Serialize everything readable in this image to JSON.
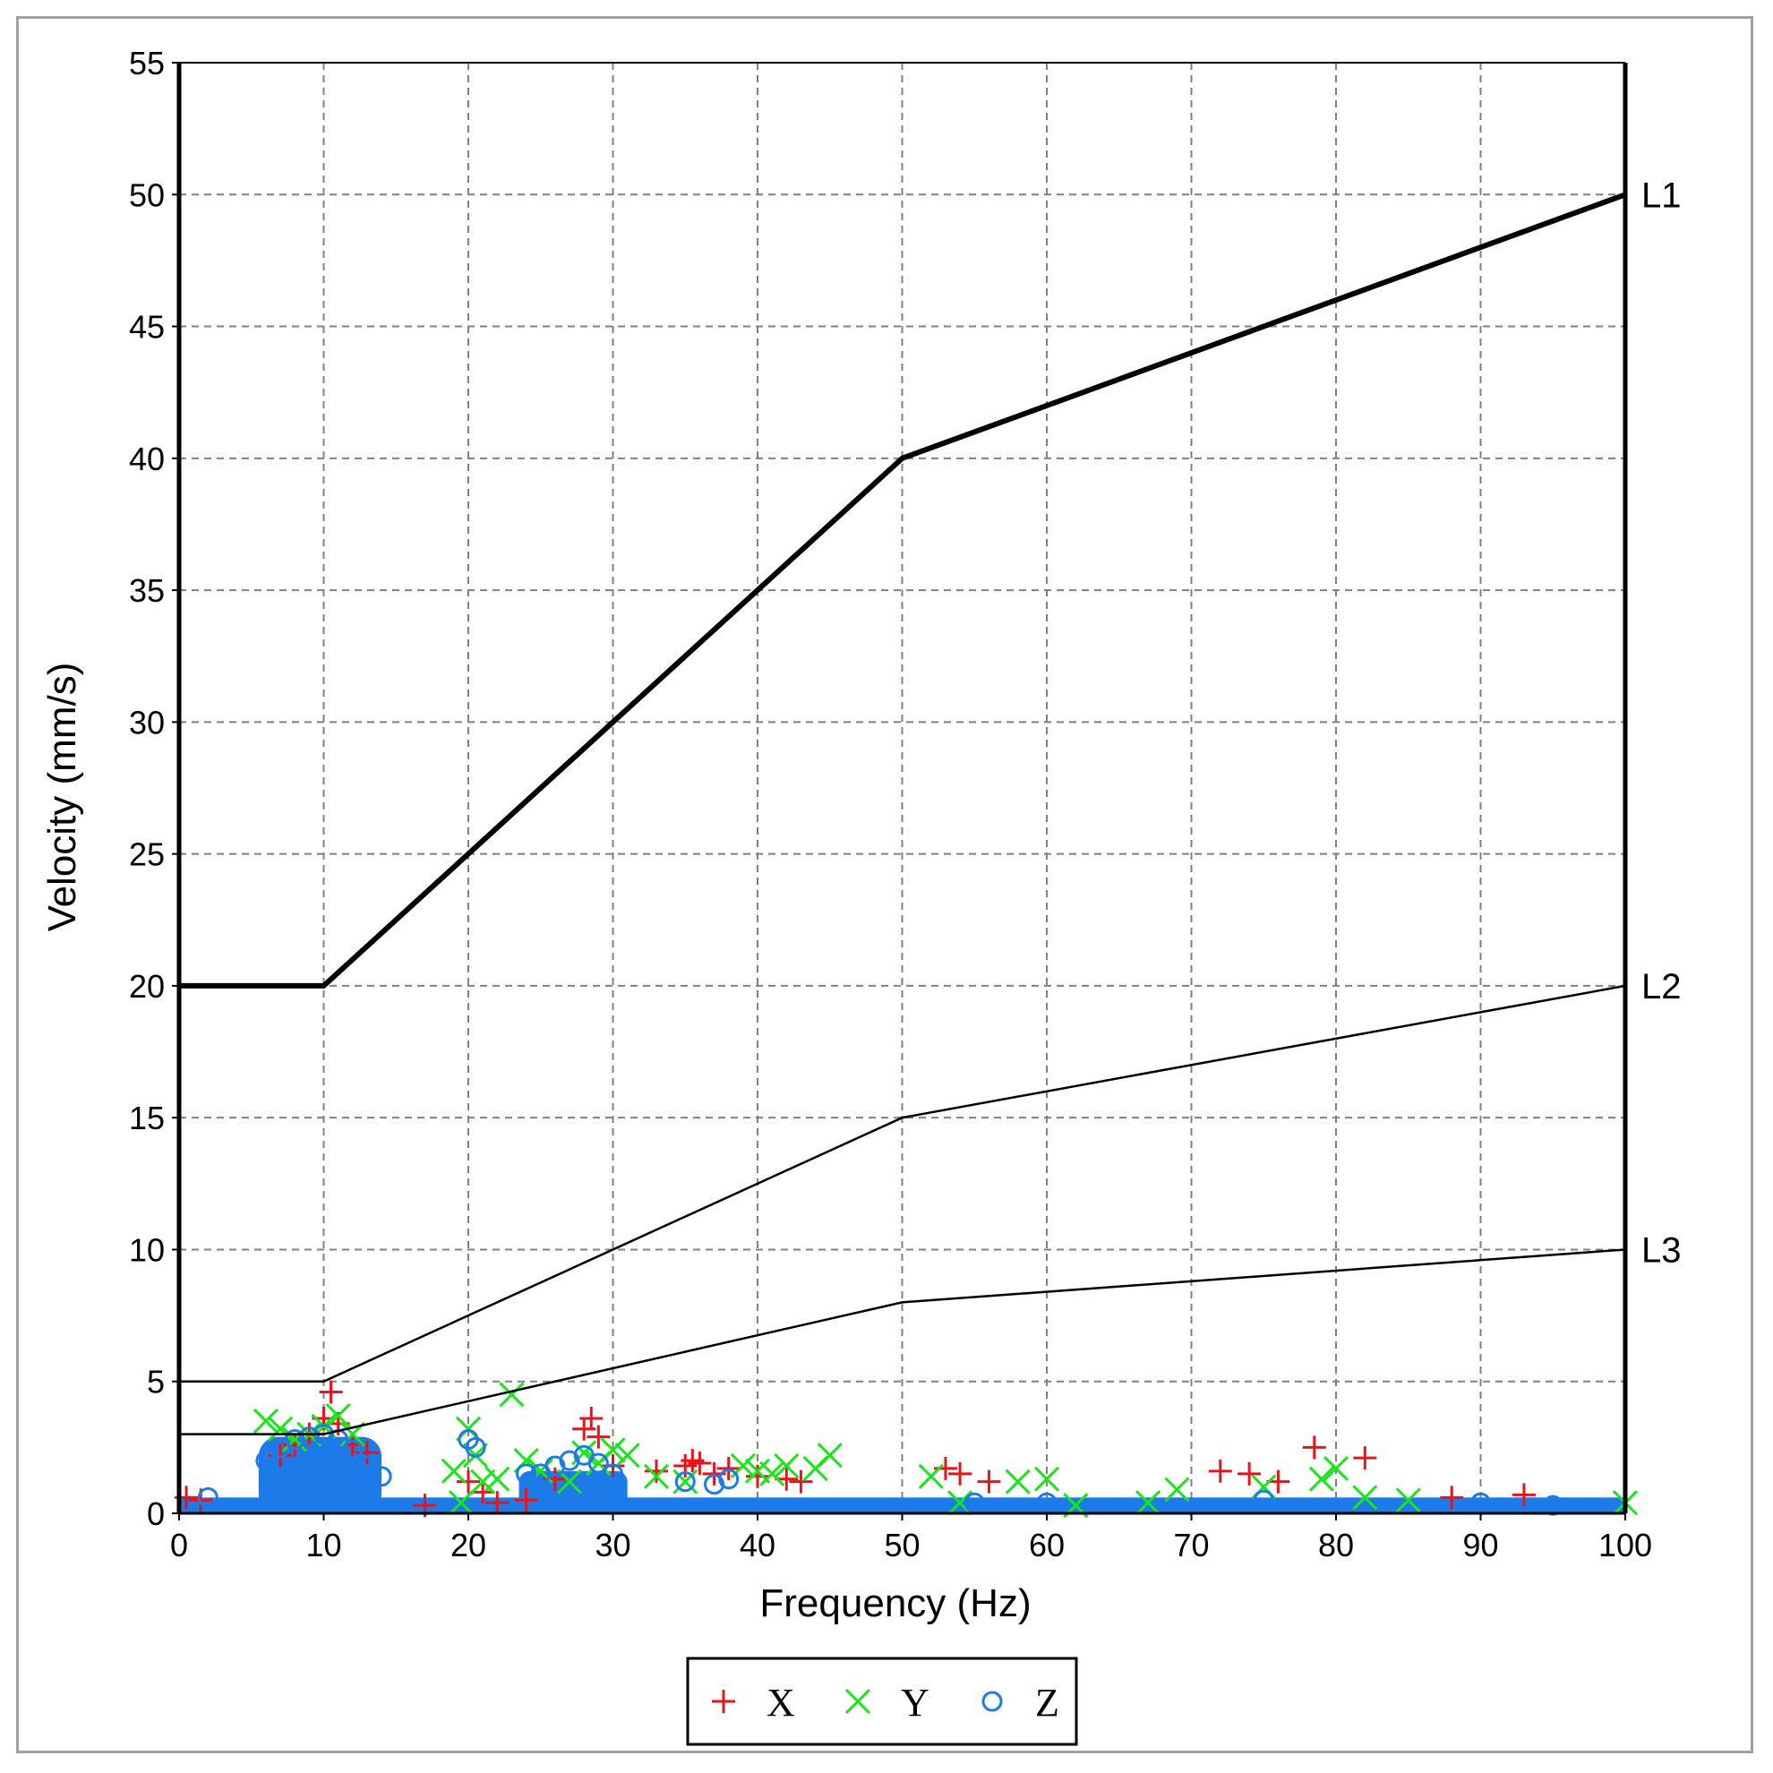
{
  "chart_data": {
    "type": "scatter",
    "xlabel": "Frequency (Hz)",
    "ylabel": "Velocity (mm/s)",
    "xlim": [
      0,
      100
    ],
    "ylim": [
      0,
      55
    ],
    "xticks": [
      "0",
      "10",
      "20",
      "30",
      "40",
      "50",
      "60",
      "70",
      "80",
      "90",
      "100"
    ],
    "yticks": [
      "0",
      "5",
      "10",
      "15",
      "20",
      "25",
      "30",
      "35",
      "40",
      "45",
      "50",
      "55"
    ],
    "grid": true,
    "legend_position": "bottom-center",
    "limit_lines": [
      {
        "name": "L1",
        "style": "thick",
        "points": [
          [
            0,
            20
          ],
          [
            10,
            20
          ],
          [
            50,
            40
          ],
          [
            100,
            50
          ]
        ]
      },
      {
        "name": "L2",
        "style": "thin",
        "points": [
          [
            0,
            5
          ],
          [
            10,
            5
          ],
          [
            50,
            15
          ],
          [
            100,
            20
          ]
        ]
      },
      {
        "name": "L3",
        "style": "thin",
        "points": [
          [
            0,
            3
          ],
          [
            10,
            3
          ],
          [
            50,
            8
          ],
          [
            100,
            10
          ]
        ]
      }
    ],
    "series": [
      {
        "name": "X",
        "marker": "+",
        "color": "#e8141c",
        "points": [
          [
            0.5,
            0.6
          ],
          [
            1.5,
            0.5
          ],
          [
            7,
            2.2
          ],
          [
            8,
            2.6
          ],
          [
            9,
            3.0
          ],
          [
            10,
            3.6
          ],
          [
            10.5,
            4.6
          ],
          [
            11,
            3.4
          ],
          [
            12,
            2.6
          ],
          [
            13,
            2.3
          ],
          [
            17,
            0.3
          ],
          [
            20,
            1.2
          ],
          [
            21,
            0.8
          ],
          [
            22,
            0.4
          ],
          [
            24,
            0.5
          ],
          [
            26,
            1.3
          ],
          [
            28,
            3.2
          ],
          [
            28.5,
            3.6
          ],
          [
            29,
            2.9
          ],
          [
            30,
            1.8
          ],
          [
            33,
            1.6
          ],
          [
            35,
            1.8
          ],
          [
            35.5,
            2.0
          ],
          [
            36,
            1.9
          ],
          [
            37,
            1.5
          ],
          [
            38,
            1.7
          ],
          [
            40,
            1.4
          ],
          [
            42,
            1.3
          ],
          [
            43,
            1.2
          ],
          [
            53,
            1.7
          ],
          [
            54,
            1.5
          ],
          [
            56,
            1.2
          ],
          [
            72,
            1.6
          ],
          [
            74,
            1.5
          ],
          [
            76,
            1.2
          ],
          [
            78.5,
            2.5
          ],
          [
            82,
            2.1
          ],
          [
            88,
            0.6
          ],
          [
            93,
            0.7
          ]
        ]
      },
      {
        "name": "Y",
        "marker": "x",
        "color": "#19e619",
        "points": [
          [
            6,
            3.5
          ],
          [
            7,
            3.2
          ],
          [
            8,
            2.8
          ],
          [
            9,
            3.0
          ],
          [
            10,
            3.3
          ],
          [
            11,
            3.7
          ],
          [
            12,
            3.0
          ],
          [
            19,
            1.6
          ],
          [
            20,
            3.2
          ],
          [
            20.5,
            2.2
          ],
          [
            21,
            1.2
          ],
          [
            19.5,
            0.4
          ],
          [
            22,
            1.3
          ],
          [
            23,
            4.5
          ],
          [
            24,
            2.0
          ],
          [
            25,
            1.6
          ],
          [
            27,
            1.2
          ],
          [
            28,
            2.3
          ],
          [
            29,
            1.9
          ],
          [
            30,
            2.4
          ],
          [
            31,
            2.2
          ],
          [
            33,
            1.4
          ],
          [
            35,
            1.2
          ],
          [
            39,
            1.8
          ],
          [
            40,
            1.6
          ],
          [
            41,
            1.5
          ],
          [
            42,
            1.8
          ],
          [
            44,
            1.7
          ],
          [
            45,
            2.2
          ],
          [
            52,
            1.4
          ],
          [
            54,
            0.4
          ],
          [
            58,
            1.2
          ],
          [
            60,
            1.3
          ],
          [
            62,
            0.3
          ],
          [
            67,
            0.4
          ],
          [
            69,
            0.9
          ],
          [
            75,
            1.0
          ],
          [
            79,
            1.3
          ],
          [
            80,
            1.7
          ],
          [
            82,
            0.6
          ],
          [
            85,
            0.5
          ],
          [
            100,
            0.4
          ]
        ]
      },
      {
        "name": "Z",
        "marker": "o",
        "color": "#1c7be8",
        "points": [
          [
            2,
            0.6
          ],
          [
            6,
            2.0
          ],
          [
            7,
            2.5
          ],
          [
            8,
            2.8
          ],
          [
            9,
            2.9
          ],
          [
            10,
            3.0
          ],
          [
            11,
            2.8
          ],
          [
            12,
            2.4
          ],
          [
            13,
            1.8
          ],
          [
            14,
            1.4
          ],
          [
            20,
            2.8
          ],
          [
            20.5,
            2.5
          ],
          [
            24,
            1.5
          ],
          [
            25,
            1.5
          ],
          [
            26,
            1.8
          ],
          [
            27,
            2.0
          ],
          [
            28,
            2.2
          ],
          [
            29,
            1.9
          ],
          [
            30,
            1.5
          ],
          [
            35,
            1.2
          ],
          [
            37,
            1.1
          ],
          [
            38,
            1.3
          ],
          [
            55,
            0.4
          ],
          [
            60,
            0.4
          ],
          [
            75,
            0.5
          ],
          [
            90,
            0.4
          ],
          [
            95,
            0.3
          ]
        ]
      }
    ],
    "baseline_band": {
      "x_range": [
        0,
        100
      ],
      "y_max": 0.6,
      "color": "#1c7be8"
    }
  },
  "legend": [
    {
      "label": "X",
      "marker": "+",
      "color": "#e8141c"
    },
    {
      "label": "Y",
      "marker": "x",
      "color": "#19e619"
    },
    {
      "label": "Z",
      "marker": "o",
      "color": "#1c7be8"
    }
  ]
}
